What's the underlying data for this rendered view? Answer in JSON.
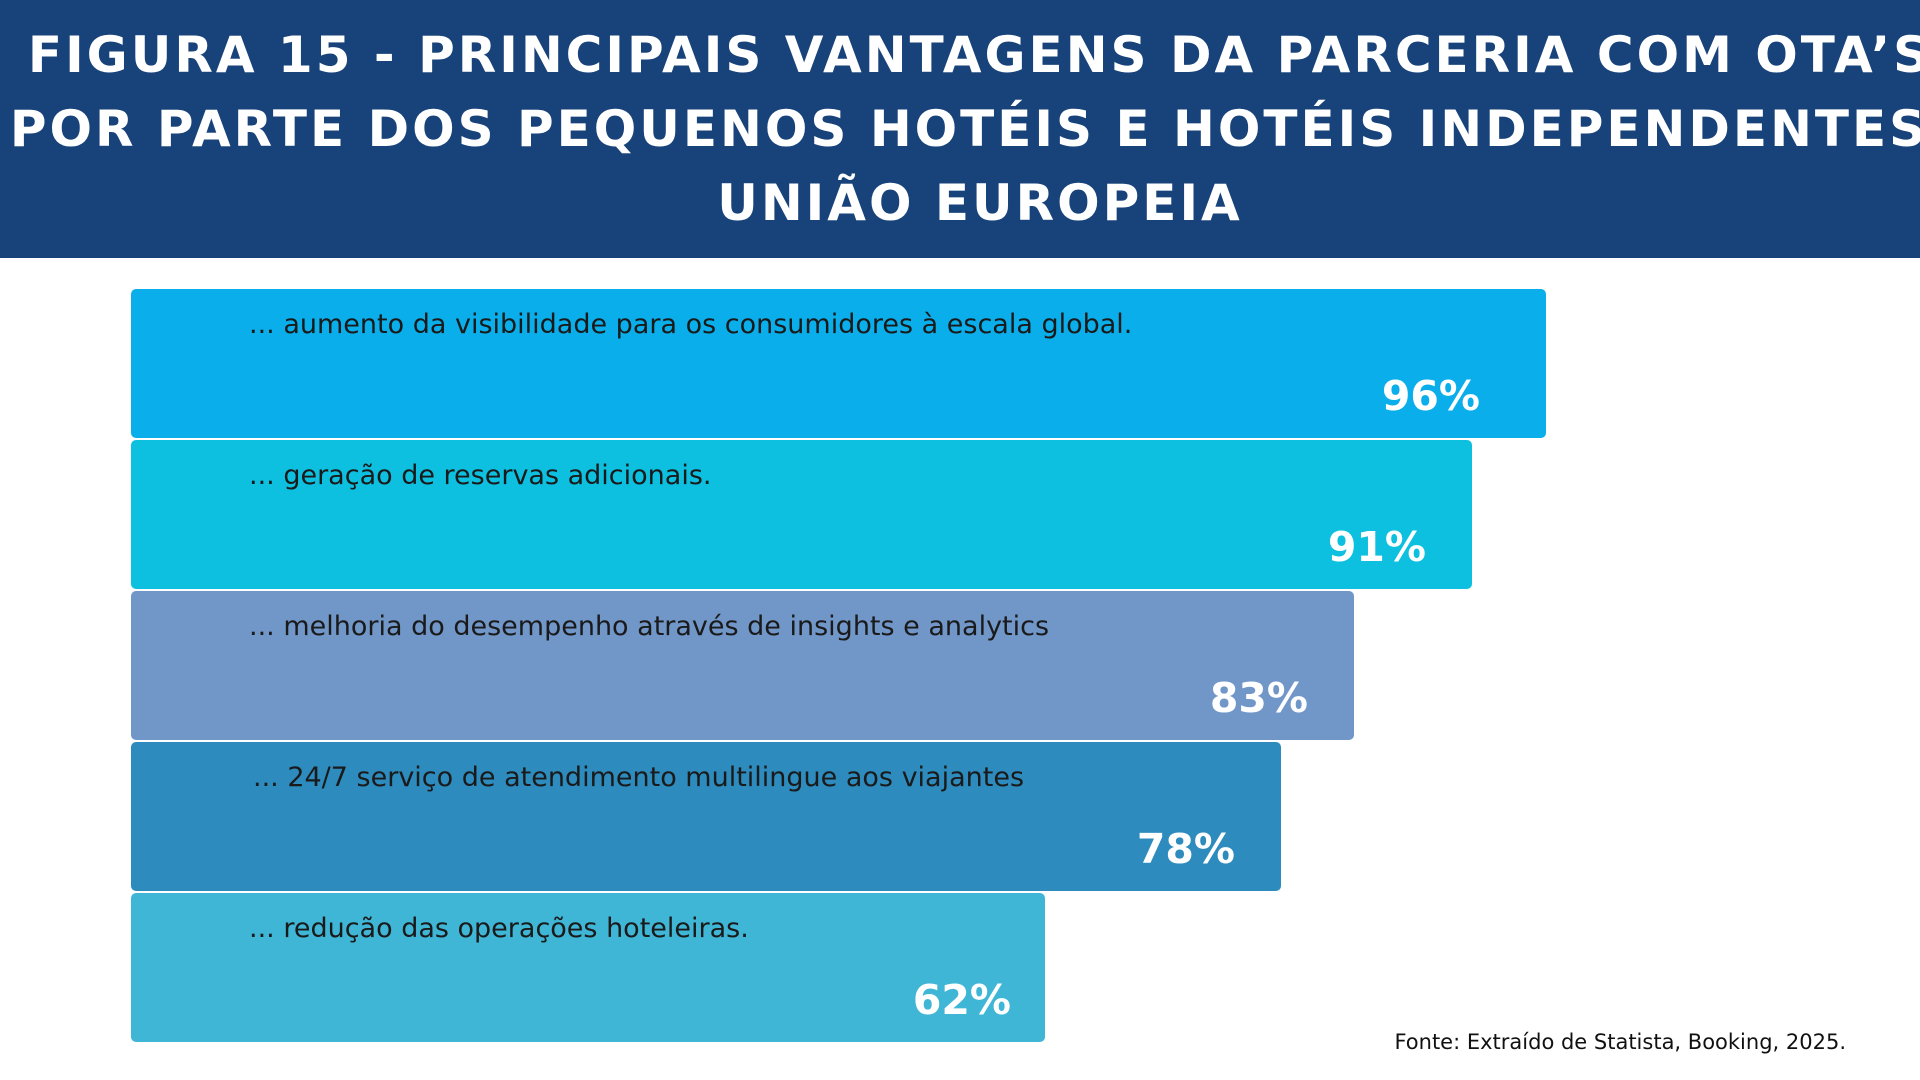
{
  "header": {
    "title_lines": [
      "FIGURA 15 - PRINCIPAIS VANTAGENS DA PARCERIA COM OTA’S",
      "POR PARTE DOS PEQUENOS HOTÉIS E HOTÉIS INDEPENDENTES,",
      "UNIÃO EUROPEIA"
    ]
  },
  "chart_data": {
    "type": "bar",
    "orientation": "horizontal",
    "title": "FIGURA 15 - PRINCIPAIS VANTAGENS DA PARCERIA COM OTA’S POR PARTE DOS PEQUENOS HOTÉIS E HOTÉIS INDEPENDENTES, UNIÃO EUROPEIA",
    "categories": [
      "... aumento da visibilidade para os consumidores à escala global.",
      "... geração de reservas adicionais.",
      "... melhoria do desempenho através de insights e analytics",
      "... 24/7 serviço de atendimento multilingue aos viajantes",
      "... redução das operações hoteleiras."
    ],
    "values": [
      96,
      91,
      83,
      78,
      62
    ],
    "value_labels": [
      "96%",
      "91%",
      "83%",
      "78%",
      "62%"
    ],
    "unit": "%",
    "colors": [
      "#0aaeea",
      "#0dc0e0",
      "#7196c8",
      "#2d8bbd",
      "#40b6d6"
    ],
    "grid": false,
    "legend": "none"
  },
  "source": "Fonte: Extraído de Statista, Booking, 2025."
}
